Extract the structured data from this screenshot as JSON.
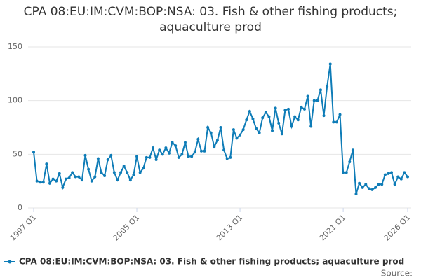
{
  "chart_data": {
    "type": "line",
    "title": "CPA 08:EU:IM:CVM:BOP:NSA: 03. Fish & other fishing products; aquaculture prod",
    "source": "Source:",
    "categories": [
      "1997 Q1",
      null,
      null,
      null,
      null,
      null,
      null,
      null,
      null,
      null,
      null,
      null,
      null,
      null,
      null,
      null,
      null,
      null,
      null,
      null,
      null,
      null,
      null,
      null,
      null,
      null,
      null,
      null,
      null,
      null,
      null,
      null,
      "2005 Q1",
      null,
      null,
      null,
      null,
      null,
      null,
      null,
      null,
      null,
      null,
      null,
      null,
      null,
      null,
      null,
      null,
      null,
      null,
      null,
      null,
      null,
      null,
      null,
      null,
      null,
      null,
      null,
      null,
      null,
      null,
      null,
      "2013 Q1",
      null,
      null,
      null,
      null,
      null,
      null,
      null,
      null,
      null,
      null,
      null,
      null,
      null,
      null,
      null,
      null,
      null,
      null,
      null,
      null,
      null,
      null,
      null,
      null,
      null,
      null,
      null,
      null,
      null,
      null,
      null,
      "2021 Q1",
      null,
      null,
      null,
      null,
      null,
      null,
      null,
      null,
      null,
      null,
      null,
      null,
      null,
      null,
      null,
      null,
      null,
      null,
      null,
      "2026 Q1"
    ],
    "series": [
      {
        "name": "CPA 08:EU:IM:CVM:BOP:NSA: 03. Fish & other fishing products; aquaculture prod",
        "color": "#0e7cb7",
        "values": [
          52,
          25,
          24,
          24,
          41,
          23,
          27,
          25,
          32,
          19,
          27,
          28,
          33,
          29,
          29,
          26,
          49,
          36,
          25,
          29,
          46,
          33,
          30,
          45,
          49,
          33,
          26,
          33,
          39,
          33,
          26,
          31,
          48,
          33,
          37,
          47,
          47,
          56,
          45,
          54,
          50,
          56,
          51,
          61,
          58,
          47,
          50,
          61,
          48,
          48,
          52,
          64,
          53,
          53,
          75,
          70,
          57,
          63,
          75,
          54,
          46,
          47,
          73,
          65,
          68,
          73,
          82,
          90,
          83,
          74,
          70,
          84,
          89,
          85,
          72,
          93,
          79,
          69,
          91,
          92,
          76,
          85,
          82,
          94,
          92,
          104,
          76,
          100,
          100,
          110,
          86,
          113,
          134,
          80,
          80,
          87,
          33,
          33,
          43,
          54,
          13,
          23,
          19,
          22,
          18,
          17,
          19,
          22,
          22,
          31,
          32,
          33,
          22,
          29,
          27,
          33,
          29
        ]
      }
    ],
    "ylim": [
      0,
      150
    ],
    "yticks": [
      0,
      50,
      100,
      150
    ],
    "grid": true
  }
}
